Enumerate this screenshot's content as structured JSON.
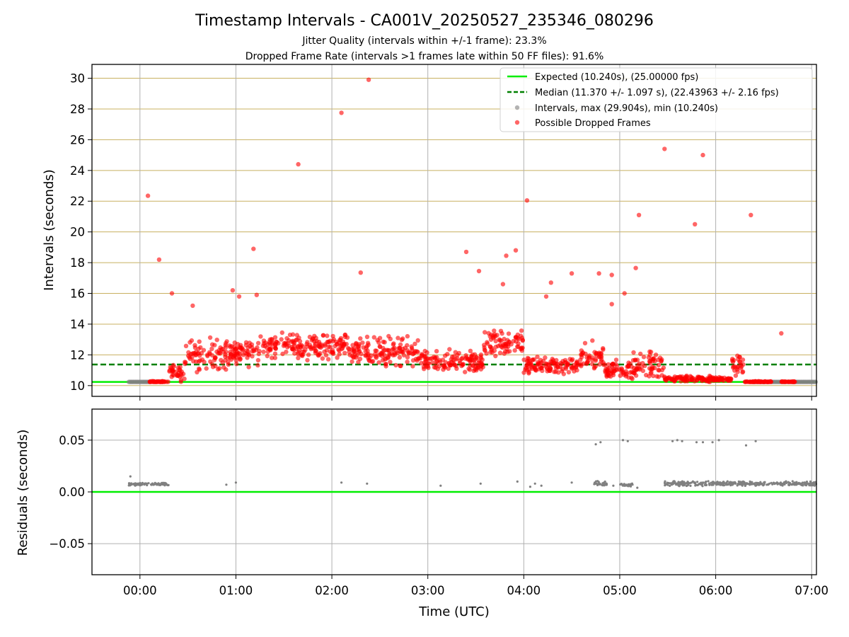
{
  "chart_data": [
    {
      "type": "scatter",
      "title": "Timestamp Intervals - CA001V_20250527_235346_080296",
      "subtitle_1": "Jitter Quality (intervals within +/-1 frame): 23.3%",
      "subtitle_2": "Dropped Frame Rate (intervals >1 frames late within 50 FF files): 91.6%",
      "xlabel": "",
      "ylabel": "Intervals (seconds)",
      "xlim_minutes": [
        -30,
        423
      ],
      "ylim": [
        9.3,
        30.9
      ],
      "yticks": [
        10,
        12,
        14,
        16,
        18,
        20,
        22,
        24,
        26,
        28,
        30
      ],
      "ytick_labels": [
        "10",
        "12",
        "14",
        "16",
        "18",
        "20",
        "22",
        "24",
        "26",
        "28",
        "30"
      ],
      "xticks_minutes": [
        0,
        60,
        120,
        180,
        240,
        300,
        360,
        420
      ],
      "grid": true,
      "legend_position": "top-right",
      "expected_line": {
        "name": "Expected (10.240s), (25.00000 fps)",
        "value": 10.24,
        "color": "#00ee00"
      },
      "median_line": {
        "name": "Median (11.370 +/- 1.097 s), (22.43963 +/- 2.16 fps)",
        "value": 11.37,
        "color": "#008000"
      },
      "series": [
        {
          "name": "Intervals, max (29.904s), min (10.240s)",
          "color": "#808080"
        },
        {
          "name": "Possible Dropped Frames",
          "color": "#ff0000"
        }
      ],
      "intervals_baseline": [
        {
          "x_start": -7,
          "x_end": 7,
          "y": 10.24
        },
        {
          "x_start": 384,
          "x_end": 423,
          "y": 10.24
        }
      ],
      "dropped_frames_outliers": [
        {
          "x": 5,
          "y": 22.35
        },
        {
          "x": 12,
          "y": 18.2
        },
        {
          "x": 20,
          "y": 16.0
        },
        {
          "x": 33,
          "y": 15.2
        },
        {
          "x": 58,
          "y": 16.2
        },
        {
          "x": 62,
          "y": 15.8
        },
        {
          "x": 71,
          "y": 18.9
        },
        {
          "x": 73,
          "y": 15.9
        },
        {
          "x": 99,
          "y": 24.4
        },
        {
          "x": 126,
          "y": 27.75
        },
        {
          "x": 138,
          "y": 17.35
        },
        {
          "x": 143,
          "y": 29.9
        },
        {
          "x": 204,
          "y": 18.7
        },
        {
          "x": 212,
          "y": 17.45
        },
        {
          "x": 227,
          "y": 16.6
        },
        {
          "x": 229,
          "y": 18.45
        },
        {
          "x": 235,
          "y": 18.8
        },
        {
          "x": 242,
          "y": 22.05
        },
        {
          "x": 254,
          "y": 15.8
        },
        {
          "x": 257,
          "y": 16.7
        },
        {
          "x": 270,
          "y": 17.3
        },
        {
          "x": 287,
          "y": 17.3
        },
        {
          "x": 295,
          "y": 17.2
        },
        {
          "x": 295,
          "y": 15.3
        },
        {
          "x": 303,
          "y": 16.0
        },
        {
          "x": 310,
          "y": 17.65
        },
        {
          "x": 312,
          "y": 21.1
        },
        {
          "x": 328,
          "y": 25.4
        },
        {
          "x": 347,
          "y": 20.5
        },
        {
          "x": 352,
          "y": 25.0
        },
        {
          "x": 382,
          "y": 21.1
        },
        {
          "x": 401,
          "y": 13.4
        }
      ],
      "dropped_frames_clusters": [
        {
          "x_start": 5,
          "x_end": 18,
          "y_center": 10.25,
          "y_spread": 0.05
        },
        {
          "x_start": 18,
          "x_end": 28,
          "y_center": 10.8,
          "y_spread": 0.8
        },
        {
          "x_start": 28,
          "x_end": 60,
          "y_center": 12.0,
          "y_spread": 1.4
        },
        {
          "x_start": 60,
          "x_end": 75,
          "y_center": 12.3,
          "y_spread": 1.3
        },
        {
          "x_start": 75,
          "x_end": 130,
          "y_center": 12.6,
          "y_spread": 1.1
        },
        {
          "x_start": 130,
          "x_end": 175,
          "y_center": 12.2,
          "y_spread": 1.3
        },
        {
          "x_start": 175,
          "x_end": 215,
          "y_center": 11.5,
          "y_spread": 1.0
        },
        {
          "x_start": 215,
          "x_end": 240,
          "y_center": 12.7,
          "y_spread": 1.3
        },
        {
          "x_start": 240,
          "x_end": 275,
          "y_center": 11.3,
          "y_spread": 0.8
        },
        {
          "x_start": 275,
          "x_end": 290,
          "y_center": 11.8,
          "y_spread": 1.3
        },
        {
          "x_start": 290,
          "x_end": 305,
          "y_center": 11.0,
          "y_spread": 0.8
        },
        {
          "x_start": 305,
          "x_end": 328,
          "y_center": 11.3,
          "y_spread": 1.2
        },
        {
          "x_start": 328,
          "x_end": 360,
          "y_center": 10.45,
          "y_spread": 0.3
        },
        {
          "x_start": 360,
          "x_end": 370,
          "y_center": 10.4,
          "y_spread": 0.2
        },
        {
          "x_start": 370,
          "x_end": 378,
          "y_center": 11.3,
          "y_spread": 1.0
        },
        {
          "x_start": 378,
          "x_end": 395,
          "y_center": 10.25,
          "y_spread": 0.05
        },
        {
          "x_start": 401,
          "x_end": 410,
          "y_center": 10.25,
          "y_spread": 0.03
        }
      ]
    },
    {
      "type": "scatter",
      "xlabel": "Time (UTC)",
      "ylabel": "Residuals (seconds)",
      "xlim_minutes": [
        -30,
        423
      ],
      "ylim": [
        -0.08,
        0.08
      ],
      "yticks": [
        0.05,
        0.0,
        -0.05
      ],
      "ytick_labels": [
        "0.05",
        "0.00",
        "−0.05"
      ],
      "xticks_minutes": [
        0,
        60,
        120,
        180,
        240,
        300,
        360,
        420
      ],
      "xtick_labels": [
        "00:00",
        "01:00",
        "02:00",
        "03:00",
        "04:00",
        "05:00",
        "06:00",
        "07:00"
      ],
      "grid": true,
      "zero_line": {
        "value": 0.0,
        "color": "#00ee00"
      },
      "series": [
        {
          "name": "Residuals",
          "color": "#808080"
        }
      ],
      "residual_points": [
        {
          "x": -6,
          "y": 0.015
        },
        {
          "x": 54,
          "y": 0.007
        },
        {
          "x": 60,
          "y": 0.009
        },
        {
          "x": 126,
          "y": 0.009
        },
        {
          "x": 142,
          "y": 0.008
        },
        {
          "x": 188,
          "y": 0.006
        },
        {
          "x": 213,
          "y": 0.008
        },
        {
          "x": 236,
          "y": 0.01
        },
        {
          "x": 244,
          "y": 0.005
        },
        {
          "x": 247,
          "y": 0.008
        },
        {
          "x": 251,
          "y": 0.006
        },
        {
          "x": 270,
          "y": 0.009
        },
        {
          "x": 285,
          "y": 0.046
        },
        {
          "x": 288,
          "y": 0.048
        },
        {
          "x": 296,
          "y": 0.006
        },
        {
          "x": 302,
          "y": 0.05
        },
        {
          "x": 305,
          "y": 0.049
        },
        {
          "x": 311,
          "y": 0.004
        },
        {
          "x": 333,
          "y": 0.049
        },
        {
          "x": 336,
          "y": 0.05
        },
        {
          "x": 339,
          "y": 0.049
        },
        {
          "x": 348,
          "y": 0.048
        },
        {
          "x": 352,
          "y": 0.048
        },
        {
          "x": 358,
          "y": 0.048
        },
        {
          "x": 362,
          "y": 0.05
        },
        {
          "x": 379,
          "y": 0.045
        },
        {
          "x": 385,
          "y": 0.049
        }
      ],
      "residual_clusters": [
        {
          "x_start": -7,
          "x_end": 18,
          "y_center": 0.0075,
          "y_spread": 0.0015
        },
        {
          "x_start": 284,
          "x_end": 292,
          "y_center": 0.008,
          "y_spread": 0.003
        },
        {
          "x_start": 300,
          "x_end": 308,
          "y_center": 0.007,
          "y_spread": 0.002
        },
        {
          "x_start": 328,
          "x_end": 368,
          "y_center": 0.008,
          "y_spread": 0.003
        },
        {
          "x_start": 368,
          "x_end": 423,
          "y_center": 0.008,
          "y_spread": 0.0025
        }
      ]
    }
  ]
}
